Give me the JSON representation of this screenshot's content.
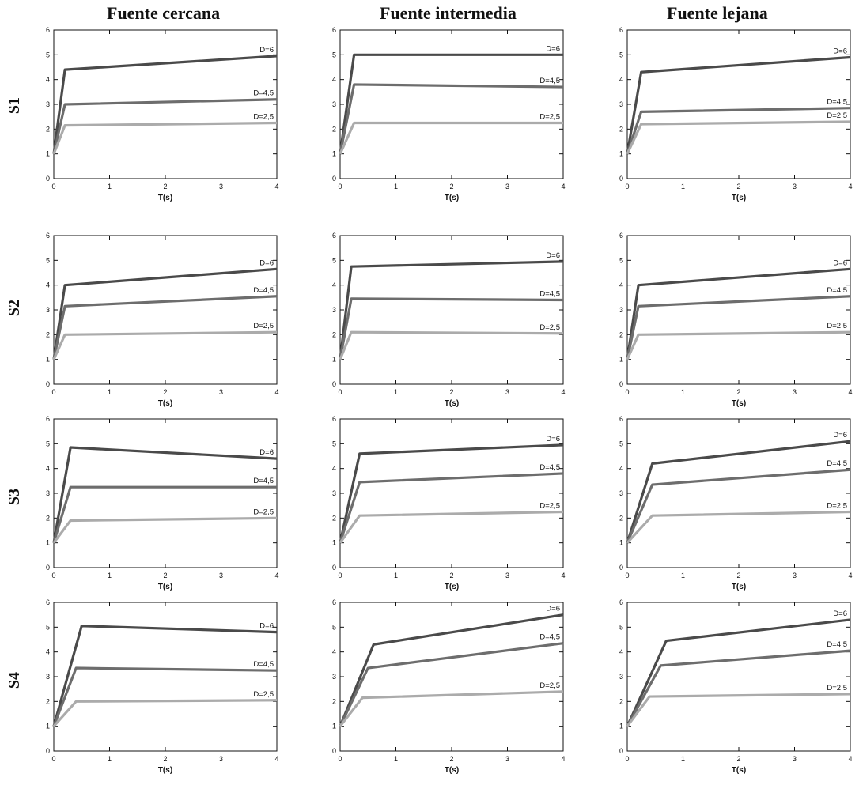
{
  "column_titles": [
    "Fuente cercana",
    "Fuente intermedia",
    "Fuente lejana"
  ],
  "row_labels": [
    "S1",
    "S2",
    "S3",
    "S4"
  ],
  "colors": {
    "D=6": "#4a4a4a",
    "D=4,5": "#6d6d6d",
    "D=2,5": "#ababab",
    "axis": "#111111"
  },
  "chart_data": [
    {
      "type": "line",
      "row": "S1",
      "column": "Fuente cercana",
      "x_label": "T(s)",
      "xlim": [
        0,
        4
      ],
      "ylim": [
        0,
        6
      ],
      "x_ticks": [
        0,
        1,
        2,
        3,
        4
      ],
      "y_ticks": [
        0,
        1,
        2,
        3,
        4,
        5,
        6
      ],
      "series": [
        {
          "name": "D=6",
          "x": [
            0,
            0.2,
            4
          ],
          "y": [
            1,
            4.4,
            4.95
          ]
        },
        {
          "name": "D=4,5",
          "x": [
            0,
            0.2,
            4
          ],
          "y": [
            1,
            3.0,
            3.2
          ]
        },
        {
          "name": "D=2,5",
          "x": [
            0,
            0.2,
            4
          ],
          "y": [
            1,
            2.15,
            2.25
          ]
        }
      ]
    },
    {
      "type": "line",
      "row": "S1",
      "column": "Fuente intermedia",
      "x_label": "T(s)",
      "xlim": [
        0,
        4
      ],
      "ylim": [
        0,
        6
      ],
      "x_ticks": [
        0,
        1,
        2,
        3,
        4
      ],
      "y_ticks": [
        0,
        1,
        2,
        3,
        4,
        5,
        6
      ],
      "series": [
        {
          "name": "D=6",
          "x": [
            0,
            0.25,
            4
          ],
          "y": [
            1,
            5.0,
            5.0
          ]
        },
        {
          "name": "D=4,5",
          "x": [
            0,
            0.25,
            4
          ],
          "y": [
            1,
            3.8,
            3.7
          ]
        },
        {
          "name": "D=2,5",
          "x": [
            0,
            0.25,
            4
          ],
          "y": [
            1,
            2.25,
            2.25
          ]
        }
      ]
    },
    {
      "type": "line",
      "row": "S1",
      "column": "Fuente lejana",
      "x_label": "T(s)",
      "xlim": [
        0,
        4
      ],
      "ylim": [
        0,
        6
      ],
      "x_ticks": [
        0,
        1,
        2,
        3,
        4
      ],
      "y_ticks": [
        0,
        1,
        2,
        3,
        4,
        5,
        6
      ],
      "series": [
        {
          "name": "D=6",
          "x": [
            0,
            0.25,
            4
          ],
          "y": [
            1,
            4.3,
            4.9
          ]
        },
        {
          "name": "D=4,5",
          "x": [
            0,
            0.25,
            4
          ],
          "y": [
            1,
            2.7,
            2.85
          ]
        },
        {
          "name": "D=2,5",
          "x": [
            0,
            0.25,
            4
          ],
          "y": [
            1,
            2.2,
            2.3
          ]
        }
      ]
    },
    {
      "type": "line",
      "row": "S2",
      "column": "Fuente cercana",
      "x_label": "T(s)",
      "xlim": [
        0,
        4
      ],
      "ylim": [
        0,
        6
      ],
      "x_ticks": [
        0,
        1,
        2,
        3,
        4
      ],
      "y_ticks": [
        0,
        1,
        2,
        3,
        4,
        5,
        6
      ],
      "series": [
        {
          "name": "D=6",
          "x": [
            0,
            0.2,
            4
          ],
          "y": [
            1,
            4.0,
            4.65
          ]
        },
        {
          "name": "D=4,5",
          "x": [
            0,
            0.2,
            4
          ],
          "y": [
            1,
            3.15,
            3.55
          ]
        },
        {
          "name": "D=2,5",
          "x": [
            0,
            0.2,
            4
          ],
          "y": [
            1,
            2.0,
            2.1
          ]
        }
      ]
    },
    {
      "type": "line",
      "row": "S2",
      "column": "Fuente intermedia",
      "x_label": "T(s)",
      "xlim": [
        0,
        4
      ],
      "ylim": [
        0,
        6
      ],
      "x_ticks": [
        0,
        1,
        2,
        3,
        4
      ],
      "y_ticks": [
        0,
        1,
        2,
        3,
        4,
        5,
        6
      ],
      "series": [
        {
          "name": "D=6",
          "x": [
            0,
            0.2,
            4
          ],
          "y": [
            1,
            4.75,
            4.95
          ]
        },
        {
          "name": "D=4,5",
          "x": [
            0,
            0.2,
            4
          ],
          "y": [
            1,
            3.45,
            3.4
          ]
        },
        {
          "name": "D=2,5",
          "x": [
            0,
            0.2,
            4
          ],
          "y": [
            1,
            2.1,
            2.05
          ]
        }
      ]
    },
    {
      "type": "line",
      "row": "S2",
      "column": "Fuente lejana",
      "x_label": "T(s)",
      "xlim": [
        0,
        4
      ],
      "ylim": [
        0,
        6
      ],
      "x_ticks": [
        0,
        1,
        2,
        3,
        4
      ],
      "y_ticks": [
        0,
        1,
        2,
        3,
        4,
        5,
        6
      ],
      "series": [
        {
          "name": "D=6",
          "x": [
            0,
            0.2,
            4
          ],
          "y": [
            1,
            4.0,
            4.65
          ]
        },
        {
          "name": "D=4,5",
          "x": [
            0,
            0.2,
            4
          ],
          "y": [
            1,
            3.15,
            3.55
          ]
        },
        {
          "name": "D=2,5",
          "x": [
            0,
            0.2,
            4
          ],
          "y": [
            1,
            2.0,
            2.1
          ]
        }
      ]
    },
    {
      "type": "line",
      "row": "S3",
      "column": "Fuente cercana",
      "x_label": "T(s)",
      "xlim": [
        0,
        4
      ],
      "ylim": [
        0,
        6
      ],
      "x_ticks": [
        0,
        1,
        2,
        3,
        4
      ],
      "y_ticks": [
        0,
        1,
        2,
        3,
        4,
        5,
        6
      ],
      "series": [
        {
          "name": "D=6",
          "x": [
            0,
            0.3,
            4
          ],
          "y": [
            1,
            4.85,
            4.4
          ]
        },
        {
          "name": "D=4,5",
          "x": [
            0,
            0.3,
            4
          ],
          "y": [
            1,
            3.25,
            3.25
          ]
        },
        {
          "name": "D=2,5",
          "x": [
            0,
            0.3,
            4
          ],
          "y": [
            1,
            1.9,
            2.0
          ]
        }
      ]
    },
    {
      "type": "line",
      "row": "S3",
      "column": "Fuente intermedia",
      "x_label": "T(s)",
      "xlim": [
        0,
        4
      ],
      "ylim": [
        0,
        6
      ],
      "x_ticks": [
        0,
        1,
        2,
        3,
        4
      ],
      "y_ticks": [
        0,
        1,
        2,
        3,
        4,
        5,
        6
      ],
      "series": [
        {
          "name": "D=6",
          "x": [
            0,
            0.35,
            4
          ],
          "y": [
            1,
            4.6,
            4.95
          ]
        },
        {
          "name": "D=4,5",
          "x": [
            0,
            0.35,
            4
          ],
          "y": [
            1,
            3.45,
            3.8
          ]
        },
        {
          "name": "D=2,5",
          "x": [
            0,
            0.35,
            4
          ],
          "y": [
            1,
            2.1,
            2.25
          ]
        }
      ]
    },
    {
      "type": "line",
      "row": "S3",
      "column": "Fuente lejana",
      "x_label": "T(s)",
      "xlim": [
        0,
        4
      ],
      "ylim": [
        0,
        6
      ],
      "x_ticks": [
        0,
        1,
        2,
        3,
        4
      ],
      "y_ticks": [
        0,
        1,
        2,
        3,
        4,
        5,
        6
      ],
      "series": [
        {
          "name": "D=6",
          "x": [
            0,
            0.45,
            4
          ],
          "y": [
            1,
            4.2,
            5.1
          ]
        },
        {
          "name": "D=4,5",
          "x": [
            0,
            0.45,
            4
          ],
          "y": [
            1,
            3.35,
            3.95
          ]
        },
        {
          "name": "D=2,5",
          "x": [
            0,
            0.45,
            4
          ],
          "y": [
            1,
            2.1,
            2.25
          ]
        }
      ]
    },
    {
      "type": "line",
      "row": "S4",
      "column": "Fuente cercana",
      "x_label": "T(s)",
      "xlim": [
        0,
        4
      ],
      "ylim": [
        0,
        6
      ],
      "x_ticks": [
        0,
        1,
        2,
        3,
        4
      ],
      "y_ticks": [
        0,
        1,
        2,
        3,
        4,
        5,
        6
      ],
      "series": [
        {
          "name": "D=6",
          "x": [
            0,
            0.5,
            4
          ],
          "y": [
            1,
            5.05,
            4.8
          ]
        },
        {
          "name": "D=4,5",
          "x": [
            0,
            0.4,
            4
          ],
          "y": [
            1,
            3.35,
            3.25
          ]
        },
        {
          "name": "D=2,5",
          "x": [
            0,
            0.4,
            4
          ],
          "y": [
            1,
            2.0,
            2.05
          ]
        }
      ]
    },
    {
      "type": "line",
      "row": "S4",
      "column": "Fuente intermedia",
      "x_label": "T(s)",
      "xlim": [
        0,
        4
      ],
      "ylim": [
        0,
        6
      ],
      "x_ticks": [
        0,
        1,
        2,
        3,
        4
      ],
      "y_ticks": [
        0,
        1,
        2,
        3,
        4,
        5,
        6
      ],
      "series": [
        {
          "name": "D=6",
          "x": [
            0,
            0.6,
            4
          ],
          "y": [
            1,
            4.3,
            5.5
          ]
        },
        {
          "name": "D=4,5",
          "x": [
            0,
            0.5,
            4
          ],
          "y": [
            1,
            3.35,
            4.35
          ]
        },
        {
          "name": "D=2,5",
          "x": [
            0,
            0.4,
            4
          ],
          "y": [
            1,
            2.15,
            2.4
          ]
        }
      ]
    },
    {
      "type": "line",
      "row": "S4",
      "column": "Fuente lejana",
      "x_label": "T(s)",
      "xlim": [
        0,
        4
      ],
      "ylim": [
        0,
        6
      ],
      "x_ticks": [
        0,
        1,
        2,
        3,
        4
      ],
      "y_ticks": [
        0,
        1,
        2,
        3,
        4,
        5,
        6
      ],
      "series": [
        {
          "name": "D=6",
          "x": [
            0,
            0.7,
            4
          ],
          "y": [
            1,
            4.45,
            5.3
          ]
        },
        {
          "name": "D=4,5",
          "x": [
            0,
            0.6,
            4
          ],
          "y": [
            1,
            3.45,
            4.05
          ]
        },
        {
          "name": "D=2,5",
          "x": [
            0,
            0.4,
            4
          ],
          "y": [
            1,
            2.2,
            2.3
          ]
        }
      ]
    }
  ]
}
